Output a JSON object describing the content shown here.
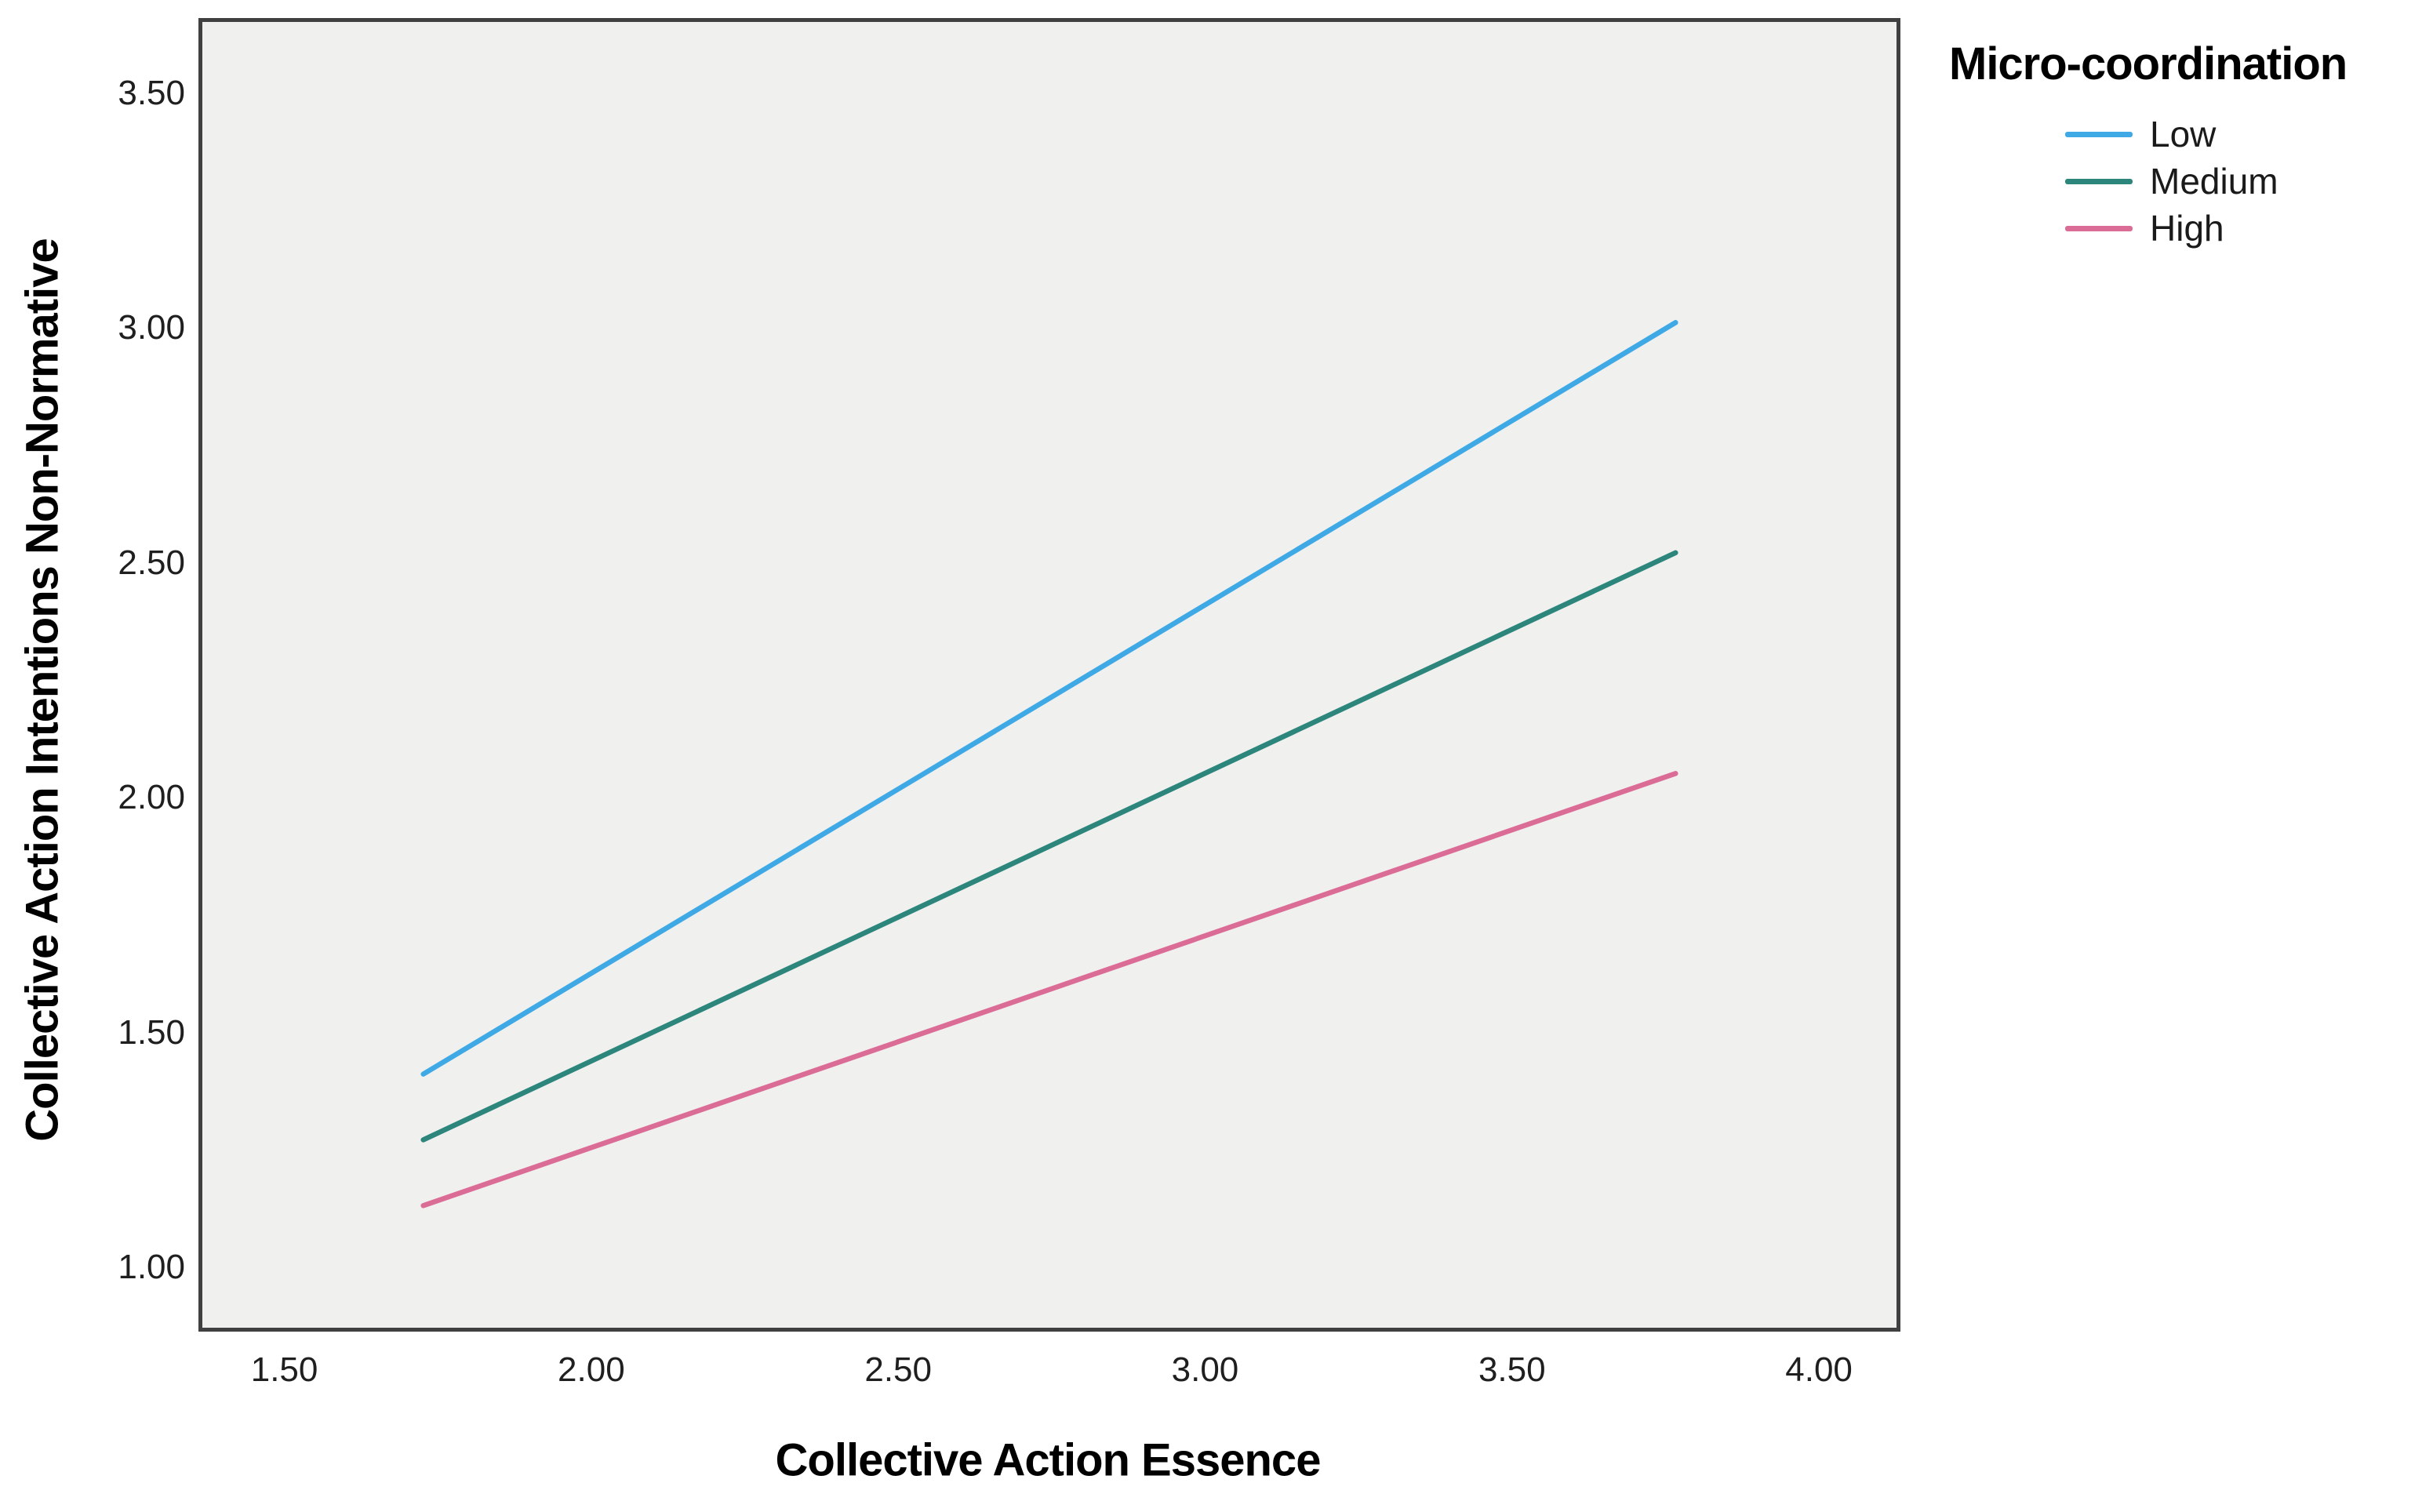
{
  "legend": {
    "title": "Micro-coordination"
  },
  "chart_data": {
    "type": "line",
    "title": "",
    "xlabel": "Collective Action Essence",
    "ylabel": "Collective Action Intentions Non-Normative",
    "legend_title": "Micro-coordination",
    "legend_position": "outside-top-right",
    "grid": false,
    "plot_background": "#F0F0EF",
    "plot_border_color": "#404040",
    "xlim": [
      1.36,
      4.12
    ],
    "ylim": [
      0.88,
      3.66
    ],
    "x_ticks": {
      "values": [
        1.5,
        2.0,
        2.5,
        3.0,
        3.5,
        4.0
      ],
      "labels": [
        "1.50",
        "2.00",
        "2.50",
        "3.00",
        "3.50",
        "4.00"
      ]
    },
    "y_ticks": {
      "values": [
        1.0,
        1.5,
        2.0,
        2.5,
        3.0,
        3.5
      ],
      "labels": [
        "1.00",
        "1.50",
        "2.00",
        "2.50",
        "3.00",
        "3.50"
      ]
    },
    "series": [
      {
        "name": "Low",
        "color": "#3FA9E6",
        "points": [
          [
            1.72,
            1.42
          ],
          [
            3.76,
            3.02
          ]
        ]
      },
      {
        "name": "Medium",
        "color": "#2C867C",
        "points": [
          [
            1.72,
            1.28
          ],
          [
            3.76,
            2.53
          ]
        ]
      },
      {
        "name": "High",
        "color": "#DB6C96",
        "points": [
          [
            1.72,
            1.14
          ],
          [
            3.76,
            2.06
          ]
        ]
      }
    ]
  }
}
